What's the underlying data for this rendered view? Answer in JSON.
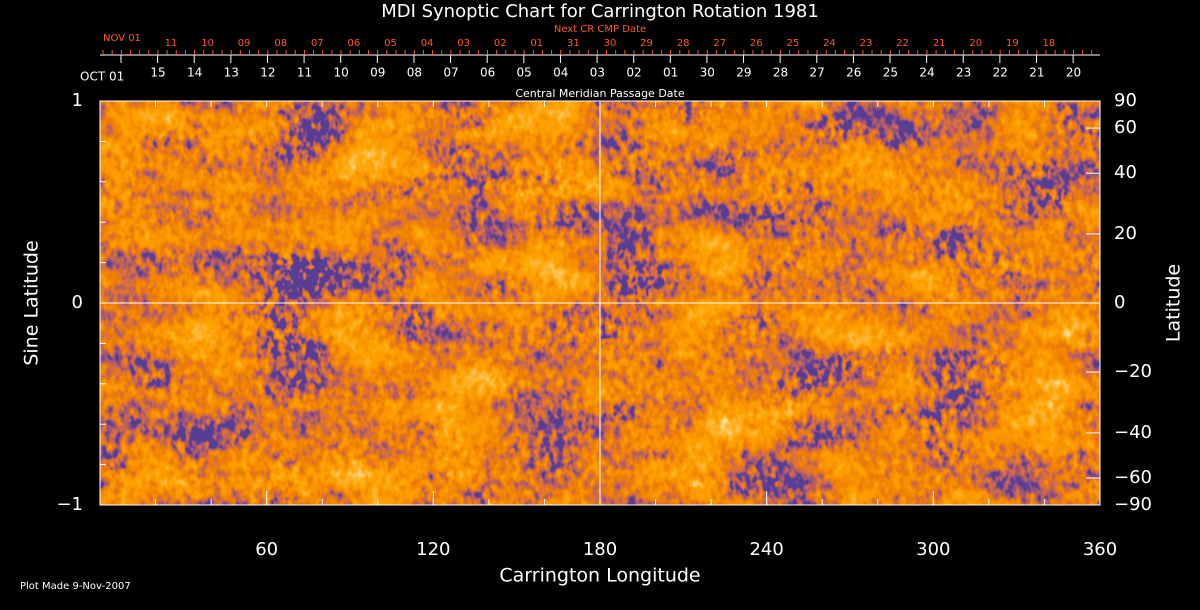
{
  "chart_data": {
    "type": "image",
    "title": "MDI Synoptic Chart for Carrington Rotation 1981",
    "xlabel": "Carrington Longitude",
    "ylabel": "Sine Latitude",
    "y2label": "Latitude",
    "top_label": "Central Meridian Passage Date",
    "next_label": "Next CR CMP Date",
    "footer": "Plot Made  9-Nov-2007",
    "xlim": [
      0,
      360
    ],
    "xticks": [
      60,
      120,
      180,
      240,
      300,
      360
    ],
    "ylim": [
      -1,
      1
    ],
    "yticks": [
      {
        "value": -1,
        "label": "−1"
      },
      0,
      1
    ],
    "y2lim": [
      -90,
      90
    ],
    "y2scale": "sine",
    "y2ticks": [
      90,
      60,
      40,
      20,
      0,
      {
        "value": -20,
        "label": "−20"
      },
      {
        "value": -40,
        "label": "−40"
      },
      {
        "value": -60,
        "label": "−60"
      },
      {
        "value": -90,
        "label": "−90"
      }
    ],
    "crosshair": {
      "x": 180,
      "y": 0
    },
    "cmp_start_label": "OCT 01",
    "cmp_dates": [
      "15",
      "14",
      "13",
      "12",
      "11",
      "10",
      "09",
      "08",
      "07",
      "06",
      "05",
      "04",
      "03",
      "02",
      "01",
      "30",
      "29",
      "28",
      "27",
      "26",
      "25",
      "24",
      "23",
      "22",
      "21",
      "20"
    ],
    "next_start_label": "NOV 01",
    "next_dates": [
      "11",
      "10",
      "09",
      "08",
      "07",
      "06",
      "05",
      "04",
      "03",
      "02",
      "01",
      "31",
      "30",
      "29",
      "28",
      "27",
      "26",
      "25",
      "24",
      "23",
      "22",
      "21",
      "20",
      "19",
      "18"
    ]
  }
}
